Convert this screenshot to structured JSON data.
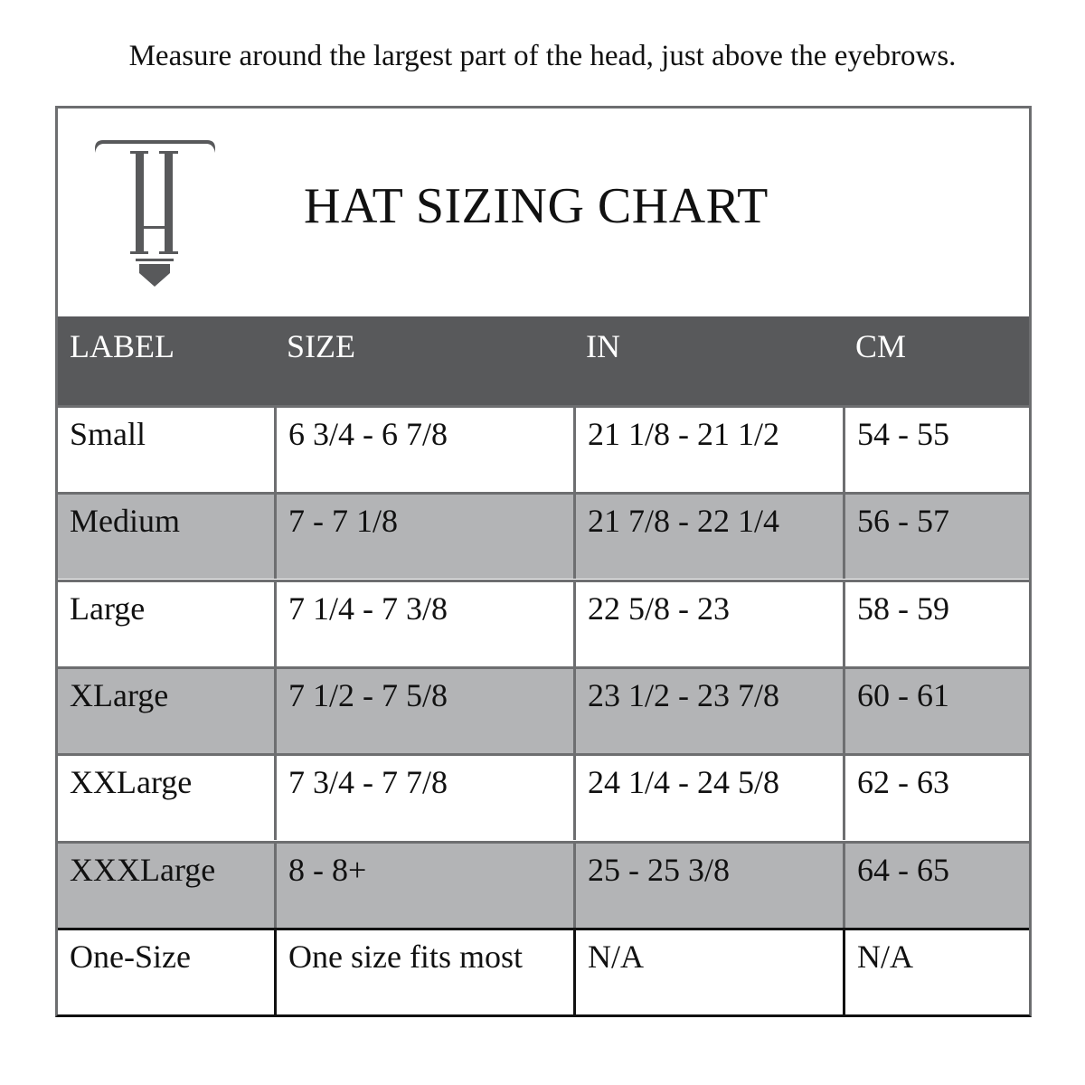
{
  "instruction": "Measure around the largest part of the head, just above the eyebrows.",
  "logo": {
    "letters": "TH",
    "color": "#58595b"
  },
  "title": "HAT SIZING CHART",
  "colors": {
    "header_bg": "#58595b",
    "alt_row_bg": "#b3b4b6",
    "grid": "#6d6e70"
  },
  "table": {
    "headers": [
      "LABEL",
      "SIZE",
      "IN",
      "CM"
    ],
    "rows": [
      [
        "Small",
        "6 3/4 - 6 7/8",
        "21 1/8 - 21 1/2",
        "54 - 55"
      ],
      [
        "Medium",
        "7 - 7 1/8",
        "21 7/8 - 22 1/4",
        "56 - 57"
      ],
      [
        "Large",
        "7 1/4 - 7 3/8",
        "22 5/8 - 23",
        "58 - 59"
      ],
      [
        "XLarge",
        "7 1/2 - 7 5/8",
        "23 1/2 - 23 7/8",
        "60 - 61"
      ],
      [
        "XXLarge",
        "7 3/4 - 7 7/8",
        "24 1/4 - 24 5/8",
        "62 - 63"
      ],
      [
        "XXXLarge",
        "8 - 8+",
        "25 - 25 3/8",
        "64 - 65"
      ],
      [
        "One-Size",
        "One size fits most",
        "N/A",
        "N/A"
      ]
    ]
  }
}
